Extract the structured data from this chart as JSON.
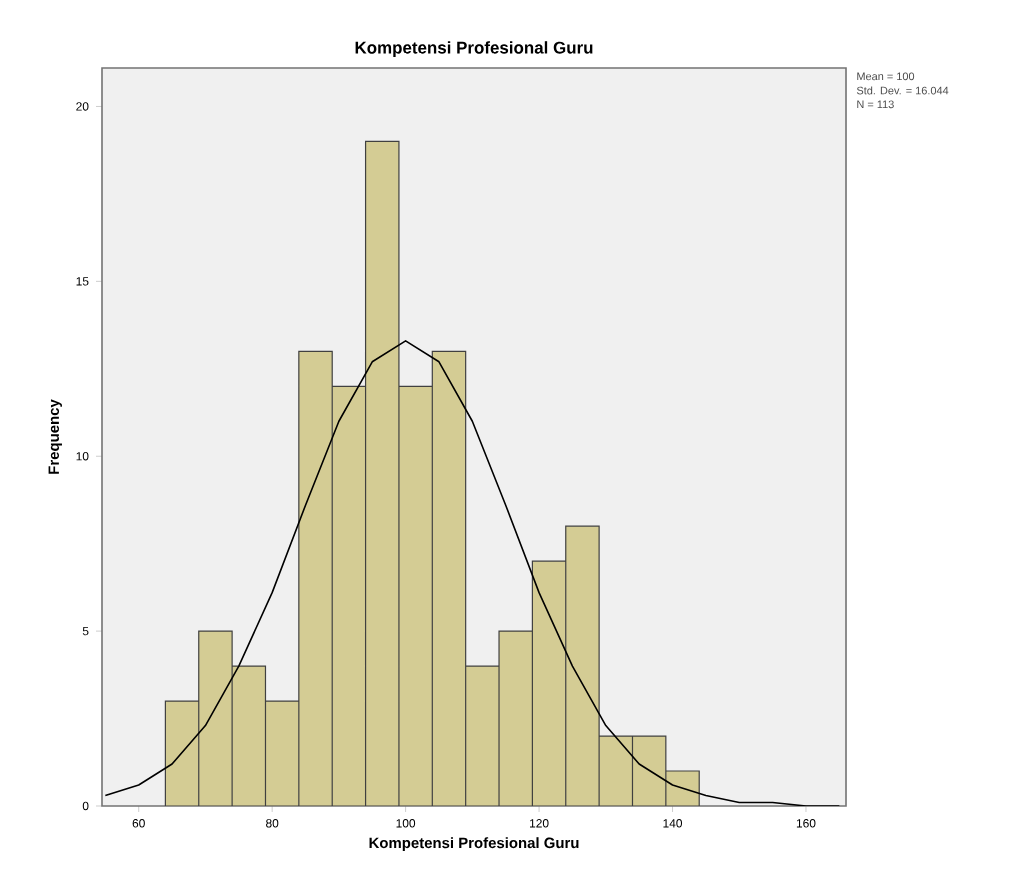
{
  "chart_data": {
    "type": "histogram",
    "title": "Kompetensi Profesional Guru",
    "xlabel": "Kompetensi Profesional Guru",
    "ylabel": "Frequency",
    "bins": [
      64,
      69,
      74,
      79,
      84,
      89,
      94,
      99,
      104,
      109,
      114,
      119,
      124,
      129,
      134,
      139,
      144
    ],
    "values": [
      3,
      5,
      4,
      3,
      13,
      12,
      19,
      12,
      13,
      4,
      5,
      7,
      8,
      2,
      2,
      1
    ],
    "color": "#d4cc94",
    "series": [
      {
        "type": "line",
        "color": "#000000",
        "x": [
          55,
          60,
          65,
          70,
          75,
          80,
          85,
          90,
          95,
          100,
          105,
          110,
          115,
          120,
          125,
          130,
          135,
          140,
          145,
          150,
          155,
          160,
          165
        ],
        "values": [
          0.3,
          0.6,
          1.2,
          2.3,
          4.0,
          6.1,
          8.6,
          11.0,
          12.7,
          13.3,
          12.7,
          11.0,
          8.6,
          6.1,
          4.0,
          2.3,
          1.2,
          0.6,
          0.3,
          0.1,
          0.1,
          0.0,
          0.0
        ]
      }
    ],
    "xlim": [
      54.5,
      166
    ],
    "ylim": [
      0,
      21.1
    ],
    "xticks": [
      60,
      80,
      100,
      120,
      140,
      160
    ],
    "yticks": [
      0,
      5,
      10,
      15,
      20
    ],
    "grid": false,
    "annotations": [
      "Mean = 100",
      "Std. Dev. = 16.044",
      "N = 113"
    ]
  }
}
